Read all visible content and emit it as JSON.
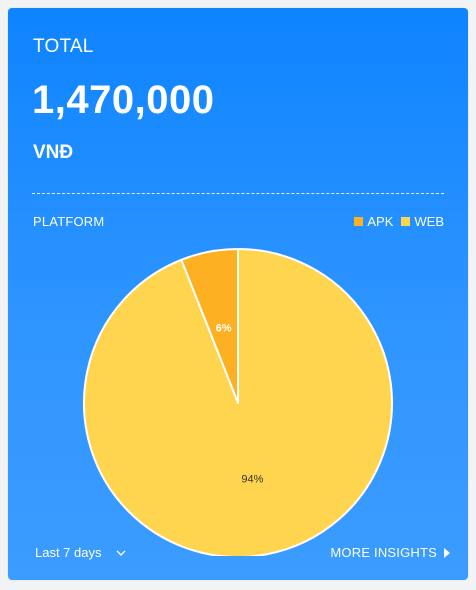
{
  "card": {
    "total_label": "TOTAL",
    "total_value": "1,470,000",
    "currency": "VNĐ",
    "section_label": "PLATFORM",
    "range_label": "Last 7 days",
    "more_label": "MORE INSIGHTS"
  },
  "legend": [
    {
      "label": "APK",
      "color": "#fdb022"
    },
    {
      "label": "WEB",
      "color": "#ffd54f"
    }
  ],
  "chart_data": {
    "type": "pie",
    "categories": [
      "APK",
      "WEB"
    ],
    "values": [
      6,
      94
    ],
    "labels": [
      "6%",
      "94%"
    ],
    "colors": [
      "#fdb022",
      "#ffd54f"
    ],
    "title": ""
  },
  "icons": {
    "range": "chevron-down-icon",
    "more": "caret-right-icon"
  }
}
